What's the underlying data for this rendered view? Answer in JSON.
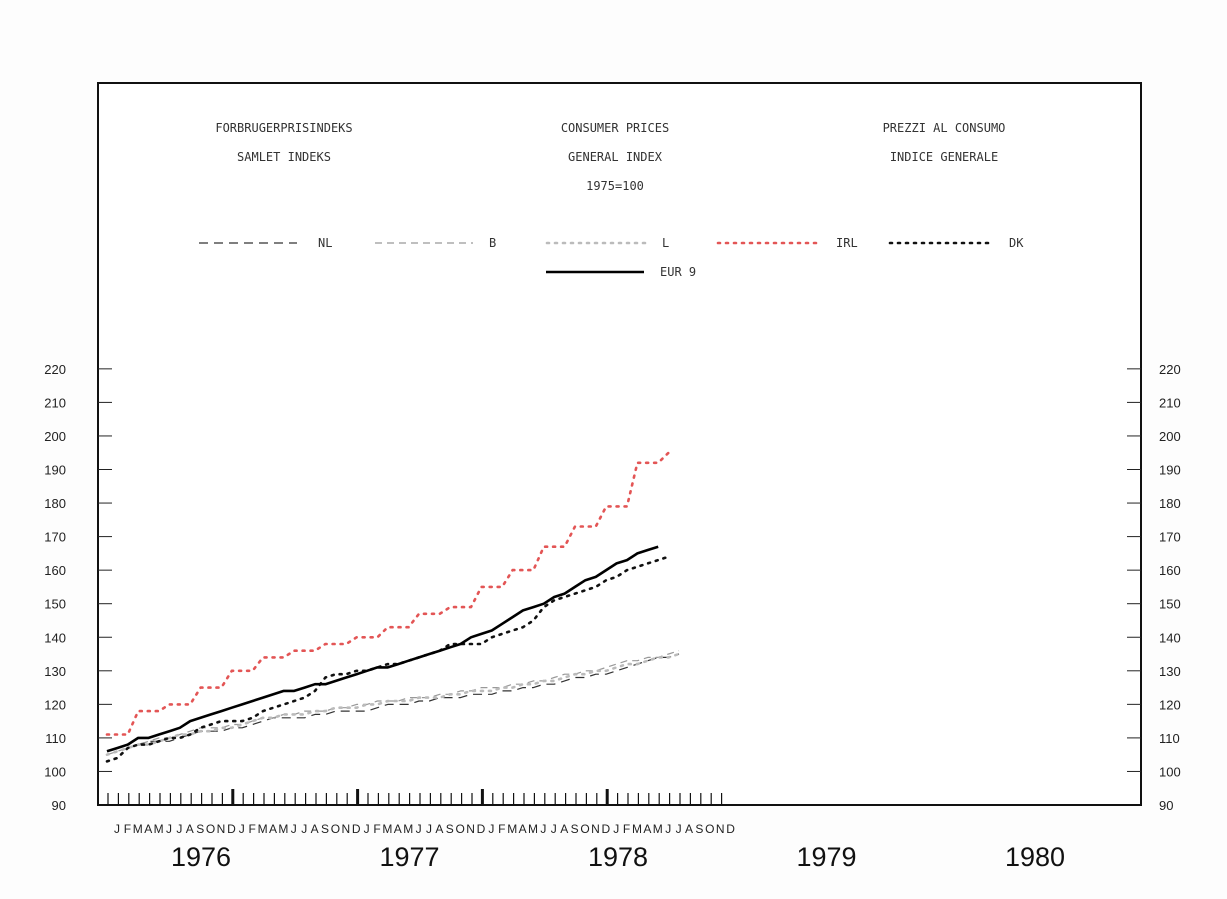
{
  "header": {
    "danish": [
      "FORBRUGERPRISINDEKS",
      "SAMLET INDEKS"
    ],
    "english": [
      "CONSUMER PRICES",
      "GENERAL INDEX",
      "1975=100"
    ],
    "italian": [
      "PREZZI AL CONSUMO",
      "INDICE GENERALE"
    ]
  },
  "chart_data": {
    "type": "line",
    "months": [
      "J",
      "F",
      "M",
      "A",
      "M",
      "J",
      "J",
      "A",
      "S",
      "O",
      "N",
      "D"
    ],
    "years": [
      "1976",
      "1977",
      "1978",
      "1979",
      "1980"
    ],
    "ylim": [
      90,
      220
    ],
    "yticks": [
      90,
      100,
      110,
      120,
      130,
      140,
      150,
      160,
      170,
      180,
      190,
      200,
      210,
      220
    ],
    "series": [
      {
        "name": "NL",
        "color": "#333333",
        "style": "longdash",
        "values": [
          106,
          107,
          108,
          108,
          109,
          109,
          109,
          110,
          111,
          112,
          112,
          112,
          113,
          113,
          114,
          115,
          116,
          116,
          116,
          116,
          117,
          117,
          118,
          118,
          118,
          118,
          119,
          120,
          120,
          120,
          121,
          121,
          122,
          122,
          122,
          123,
          123,
          123,
          124,
          124,
          125,
          125,
          126,
          126,
          127,
          128,
          128,
          129,
          129,
          130,
          131,
          132,
          133,
          134,
          134,
          135
        ]
      },
      {
        "name": "B",
        "color": "#999999",
        "style": "dash",
        "values": [
          105,
          106,
          107,
          108,
          109,
          110,
          110,
          111,
          112,
          113,
          113,
          113,
          114,
          114,
          115,
          116,
          116,
          117,
          117,
          118,
          118,
          118,
          119,
          119,
          120,
          120,
          121,
          121,
          121,
          122,
          122,
          122,
          123,
          123,
          124,
          124,
          125,
          125,
          125,
          126,
          126,
          127,
          127,
          128,
          129,
          129,
          130,
          130,
          131,
          132,
          133,
          133,
          134,
          134,
          135,
          136
        ]
      },
      {
        "name": "L",
        "color": "#bbbbbb",
        "style": "dot",
        "values": [
          105,
          106,
          107,
          108,
          108,
          109,
          110,
          111,
          111,
          112,
          112,
          113,
          113,
          114,
          115,
          116,
          116,
          117,
          117,
          117,
          118,
          118,
          119,
          119,
          119,
          120,
          120,
          121,
          121,
          121,
          122,
          122,
          122,
          123,
          123,
          124,
          124,
          124,
          125,
          125,
          126,
          126,
          127,
          127,
          128,
          129,
          129,
          130,
          130,
          131,
          132,
          132,
          133,
          134,
          134,
          135
        ]
      },
      {
        "name": "IRL",
        "color": "#e35555",
        "style": "dot",
        "values": [
          111,
          111,
          111,
          118,
          118,
          118,
          120,
          120,
          120,
          125,
          125,
          125,
          130,
          130,
          130,
          134,
          134,
          134,
          136,
          136,
          136,
          138,
          138,
          138,
          140,
          140,
          140,
          143,
          143,
          143,
          147,
          147,
          147,
          149,
          149,
          149,
          155,
          155,
          155,
          160,
          160,
          160,
          167,
          167,
          167,
          173,
          173,
          173,
          179,
          179,
          179,
          192,
          192,
          192,
          195
        ]
      },
      {
        "name": "DK",
        "color": "#111111",
        "style": "dot",
        "values": [
          103,
          104,
          107,
          108,
          108,
          109,
          110,
          110,
          111,
          113,
          114,
          115,
          115,
          115,
          116,
          118,
          119,
          120,
          121,
          122,
          124,
          128,
          129,
          129,
          130,
          130,
          131,
          132,
          132,
          133,
          134,
          135,
          136,
          138,
          138,
          138,
          138,
          140,
          141,
          142,
          143,
          145,
          149,
          151,
          152,
          153,
          154,
          155,
          157,
          158,
          160,
          161,
          162,
          163,
          164
        ]
      },
      {
        "name": "EUR 9",
        "color": "#000000",
        "style": "solid",
        "values": [
          106,
          107,
          108,
          110,
          110,
          111,
          112,
          113,
          115,
          116,
          117,
          118,
          119,
          120,
          121,
          122,
          123,
          124,
          124,
          125,
          126,
          126,
          127,
          128,
          129,
          130,
          131,
          131,
          132,
          133,
          134,
          135,
          136,
          137,
          138,
          140,
          141,
          142,
          144,
          146,
          148,
          149,
          150,
          152,
          153,
          155,
          157,
          158,
          160,
          162,
          163,
          165,
          166,
          167
        ]
      }
    ]
  }
}
